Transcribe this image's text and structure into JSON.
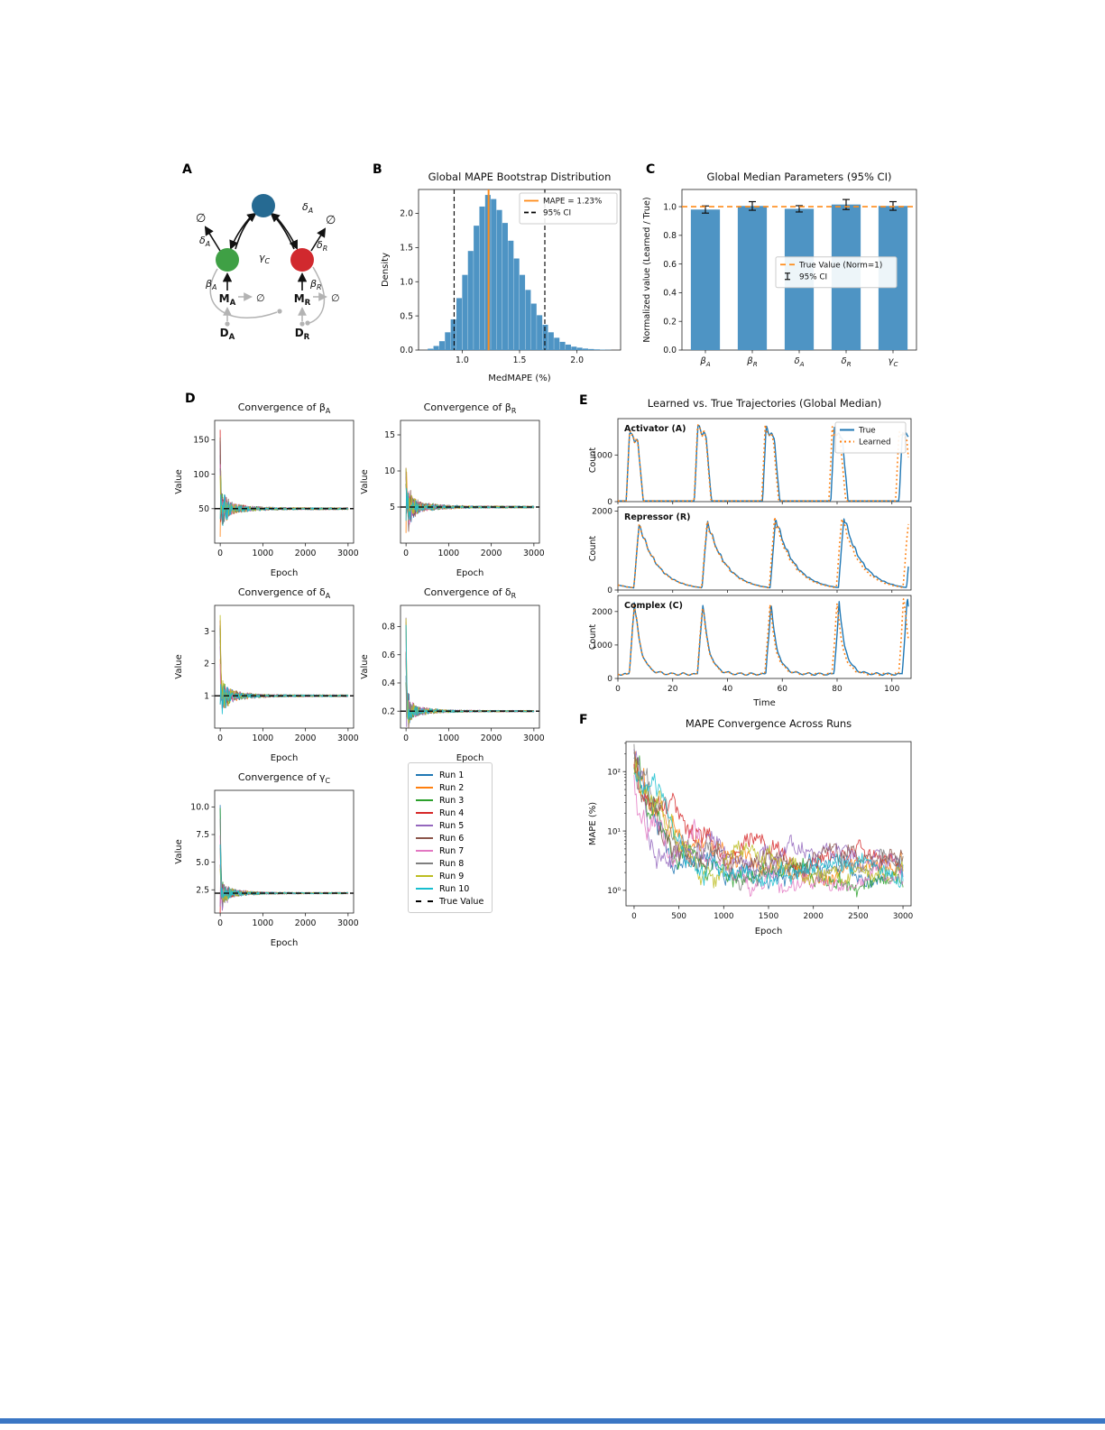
{
  "figure": {
    "panels": {
      "A": "A",
      "B": "B",
      "C": "C",
      "D": "D",
      "E": "E",
      "F": "F"
    }
  },
  "colors": {
    "runs": [
      "#1f77b4",
      "#ff7f0e",
      "#2ca02c",
      "#d62728",
      "#9467bd",
      "#8c564b",
      "#e377c2",
      "#7f7f7f",
      "#bcbd22",
      "#17becf"
    ],
    "hist_bar": "#4e94c4",
    "accent_orange": "#ff8c1a",
    "true_blue": "#1f77b4",
    "learned_orange": "#ff7f0e",
    "bottom_bar": "#3a76c4"
  },
  "diagram": {
    "node_colors": {
      "complex": "#266a92",
      "activator": "#3fa045",
      "repressor": "#d1292e"
    },
    "grey": "#b3b3b3",
    "labels": {
      "phi_top_left": "∅",
      "delta_a_left": "δ_A",
      "gamma_c": "γ_C",
      "delta_a_top": "δ_A",
      "phi_top_right": "∅",
      "delta_r": "δ_R",
      "beta_a": "β_A",
      "beta_r": "β_R",
      "m_a": "M_A",
      "m_r": "M_R",
      "phi_grey_left": "∅",
      "phi_grey_right": "∅",
      "d_a": "D_A",
      "d_r": "D_R"
    }
  },
  "run_legend": {
    "items": [
      "Run 1",
      "Run 2",
      "Run 3",
      "Run 4",
      "Run 5",
      "Run 6",
      "Run 7",
      "Run 8",
      "Run 9",
      "Run 10",
      "True Value"
    ]
  },
  "chart_data": [
    {
      "id": "chartB",
      "kind": "histogram",
      "type": "bar",
      "title": "Global MAPE Bootstrap Distribution",
      "xlabel": "MedMAPE (%)",
      "ylabel": "Density",
      "xlim": [
        0.62,
        2.38
      ],
      "ylim": [
        0,
        2.35
      ],
      "xticks": [
        1.0,
        1.5,
        2.0
      ],
      "yticks": [
        0.0,
        0.5,
        1.0,
        1.5,
        2.0
      ],
      "bin_start": 0.7,
      "bin_width": 0.05,
      "densities": [
        0.02,
        0.06,
        0.13,
        0.26,
        0.45,
        0.76,
        1.1,
        1.45,
        1.82,
        2.1,
        2.27,
        2.21,
        2.05,
        1.86,
        1.6,
        1.34,
        1.1,
        0.88,
        0.68,
        0.51,
        0.37,
        0.26,
        0.18,
        0.12,
        0.08,
        0.05,
        0.035,
        0.022,
        0.015,
        0.01,
        0.006,
        0.004
      ],
      "mape": 1.23,
      "ci": [
        0.93,
        1.72
      ],
      "legend": [
        {
          "label": "MAPE = 1.23%",
          "color": "#ff8c1a"
        },
        {
          "label": "95% CI",
          "color": "#000000",
          "dash": "5 3"
        }
      ]
    },
    {
      "id": "chartC",
      "kind": "bars",
      "type": "bar",
      "title": "Global Median Parameters (95% CI)",
      "ylabel": "Normalized value (Learned / True)",
      "categories": [
        "β_A",
        "β_R",
        "δ_A",
        "δ_R",
        "γ_C"
      ],
      "values": [
        0.98,
        1.005,
        0.985,
        1.015,
        1.005
      ],
      "errors": [
        0.025,
        0.03,
        0.022,
        0.035,
        0.03
      ],
      "ylim": [
        0,
        1.12
      ],
      "yticks": [
        0.0,
        0.2,
        0.4,
        0.6,
        0.8,
        1.0
      ],
      "hline": 1.0,
      "legend": [
        {
          "label": "True Value (Norm=1)",
          "color": "#ff8c1a",
          "dash": "6 4"
        },
        {
          "label": "95% CI",
          "type": "errbar"
        }
      ]
    },
    {
      "id": "chartD1",
      "kind": "convergence",
      "type": "line",
      "title": "Convergence of β_A",
      "xlabel": "Epoch",
      "ylabel": "Value",
      "true_value": 50,
      "ylim": [
        0,
        178
      ],
      "yticks": [
        50,
        100,
        150
      ],
      "ydec": 0,
      "xticks": [
        0,
        1000,
        2000,
        3000
      ],
      "spike_rel": 2.4,
      "seed": 11
    },
    {
      "id": "chartD2",
      "kind": "convergence",
      "type": "line",
      "title": "Convergence of β_R",
      "xlabel": "Epoch",
      "ylabel": "Value",
      "true_value": 5,
      "ylim": [
        0,
        17
      ],
      "yticks": [
        5,
        10,
        15
      ],
      "ydec": 0,
      "xticks": [
        0,
        1000,
        2000,
        3000
      ],
      "spike_rel": 2.2,
      "seed": 22
    },
    {
      "id": "chartD3",
      "kind": "convergence",
      "type": "line",
      "title": "Convergence of δ_A",
      "xlabel": "Epoch",
      "ylabel": "Value",
      "true_value": 1,
      "ylim": [
        0,
        3.8
      ],
      "yticks": [
        1,
        2,
        3
      ],
      "ydec": 0,
      "xticks": [
        0,
        1000,
        2000,
        3000
      ],
      "spike_rel": 2.6,
      "seed": 33
    },
    {
      "id": "chartD4",
      "kind": "convergence",
      "type": "line",
      "title": "Convergence of δ_R",
      "xlabel": "Epoch",
      "ylabel": "Value",
      "true_value": 0.2,
      "ylim": [
        0.08,
        0.95
      ],
      "yticks": [
        0.2,
        0.4,
        0.6,
        0.8
      ],
      "ydec": 1,
      "xticks": [
        0,
        1000,
        2000,
        3000
      ],
      "spike_rel": 3.4,
      "seed": 44
    },
    {
      "id": "chartD5",
      "kind": "convergence",
      "type": "line",
      "title": "Convergence of γ_C",
      "xlabel": "Epoch",
      "ylabel": "Value",
      "true_value": 2.2,
      "ylim": [
        0.4,
        11.5
      ],
      "yticks": [
        2.5,
        5.0,
        7.5,
        10.0
      ],
      "ydec": 1,
      "xticks": [
        0,
        1000,
        2000,
        3000
      ],
      "spike_rel": 4.0,
      "seed": 55
    },
    {
      "id": "chartE",
      "kind": "trajectories",
      "type": "line",
      "title": "Learned vs. True Trajectories (Global Median)",
      "xlabel": "Time",
      "ylabel": "Count",
      "xlim": [
        0,
        107
      ],
      "xticks": [
        0,
        20,
        40,
        60,
        80,
        100
      ],
      "subplots": [
        {
          "label": "Activator (A)",
          "ylim": [
            0,
            1780
          ],
          "yticks": [
            0,
            1000
          ]
        },
        {
          "label": "Repressor (R)",
          "ylim": [
            0,
            2100
          ],
          "yticks": [
            0,
            2000
          ]
        },
        {
          "label": "Complex (C)",
          "ylim": [
            0,
            2480
          ],
          "yticks": [
            0,
            1000,
            2000
          ]
        }
      ],
      "series": [
        {
          "name": "True",
          "color": "#1f77b4",
          "style": "solid"
        },
        {
          "name": "Learned",
          "color": "#ff7f0e",
          "style": "dotted"
        }
      ],
      "period": 24.9,
      "t_offset": 3.0,
      "peaks": [
        1550,
        1750,
        2250
      ],
      "seed": 7
    },
    {
      "id": "chartF",
      "kind": "loglines",
      "type": "line",
      "title": "MAPE Convergence Across Runs",
      "xlabel": "Epoch",
      "ylabel": "MAPE (%)",
      "xlim": [
        -90,
        3090
      ],
      "xticks": [
        0,
        500,
        1000,
        1500,
        2000,
        2500,
        3000
      ],
      "ylim": [
        0.55,
        320
      ],
      "yticks": [
        1,
        10,
        100
      ],
      "ytick_labels": [
        "10⁰",
        "10¹",
        "10²"
      ],
      "n_runs": 10,
      "seed": 99
    }
  ]
}
